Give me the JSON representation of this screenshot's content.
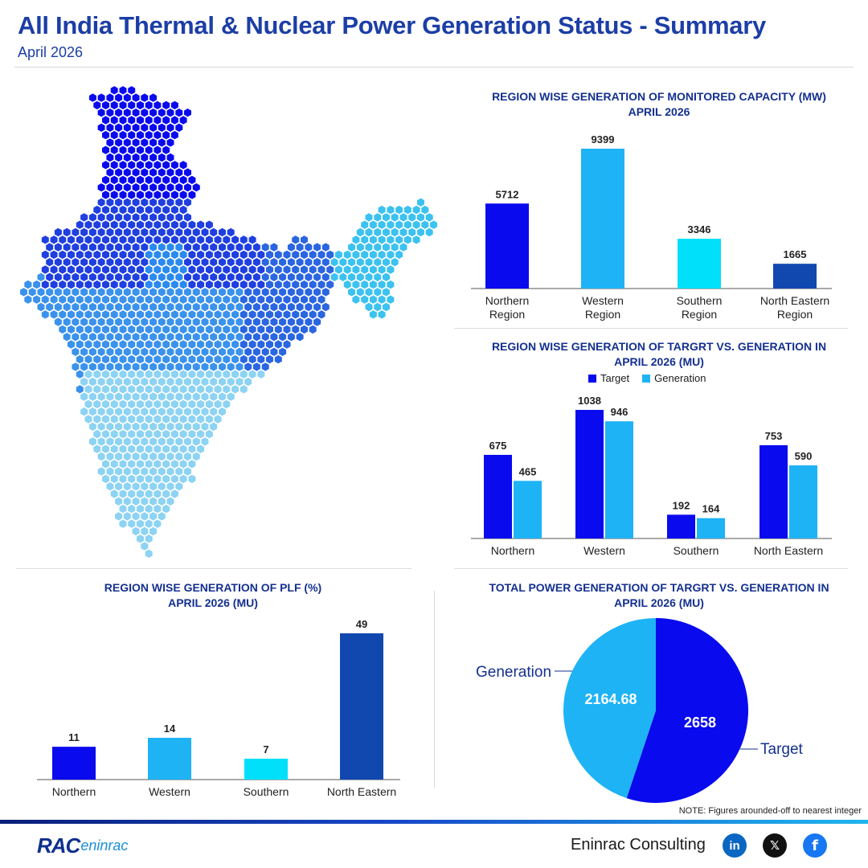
{
  "header": {
    "title": "All India Thermal & Nuclear Power Generation Status - Summary",
    "subtitle": "April 2026"
  },
  "colors": {
    "dark_blue": "#0a0aee",
    "sky_blue": "#1eb3f5",
    "cyan": "#00e0fa",
    "navy": "#1148b0",
    "title_blue": "#14308f"
  },
  "chart1_title": [
    "REGION WISE GENERATION OF MONITORED CAPACITY (MW)",
    "APRIL 2026"
  ],
  "chart2_title": [
    "REGION WISE GENERATION OF TARGRT VS. GENERATION IN",
    "APRIL 2026 (MU)"
  ],
  "chart3_title": [
    "REGION WISE GENERATION OF PLF (%)",
    "APRIL 2026 (MU)"
  ],
  "chart4_title": [
    "TOTAL POWER GENERATION OF TARGRT VS. GENERATION IN",
    "APRIL 2026 (MU)"
  ],
  "chart_data": [
    {
      "type": "bar",
      "categories": [
        [
          "Northern",
          "Region"
        ],
        [
          "Western",
          "Region"
        ],
        [
          "Southern",
          "Region"
        ],
        [
          "North Eastern",
          "Region"
        ]
      ],
      "values": [
        5712,
        9399,
        3346,
        1665
      ],
      "colors": [
        "#0a0aee",
        "#1eb3f5",
        "#00e0fa",
        "#1148b0"
      ],
      "ylim": [
        0,
        9399
      ]
    },
    {
      "type": "bar",
      "categories": [
        "Northern",
        "Western",
        "Southern",
        "North Eastern"
      ],
      "series": [
        {
          "name": "Target",
          "values": [
            675,
            1038,
            192,
            753
          ],
          "color": "#0a0aee"
        },
        {
          "name": "Generation",
          "values": [
            465,
            946,
            164,
            590
          ],
          "color": "#1eb3f5"
        }
      ],
      "ylim": [
        0,
        1038
      ],
      "legend": "top"
    },
    {
      "type": "bar",
      "categories": [
        "Northern",
        "Western",
        "Southern",
        "North Eastern"
      ],
      "values": [
        11,
        14,
        7,
        49
      ],
      "colors": [
        "#0a0aee",
        "#1eb3f5",
        "#00e0fa",
        "#1148b0"
      ],
      "ylim": [
        0,
        49
      ]
    },
    {
      "type": "pie",
      "labels": [
        "Target",
        "Generation"
      ],
      "values": [
        2658,
        2164.68
      ],
      "value_labels": [
        "2658",
        "2164.68"
      ],
      "colors": [
        "#0a0aee",
        "#1eb3f5"
      ]
    }
  ],
  "note": "NOTE: Figures arounded-off to nearest integer",
  "footer": {
    "logo_text": "RAC",
    "logo_suffix": "eninrac",
    "company": "Eninrac Consulting",
    "social_icons": [
      "linkedin-icon",
      "x-icon",
      "facebook-icon"
    ],
    "social_labels": [
      "in",
      "𝕏",
      "f"
    ],
    "social_colors": [
      "#0a66c2",
      "#111111",
      "#1877f2"
    ]
  }
}
